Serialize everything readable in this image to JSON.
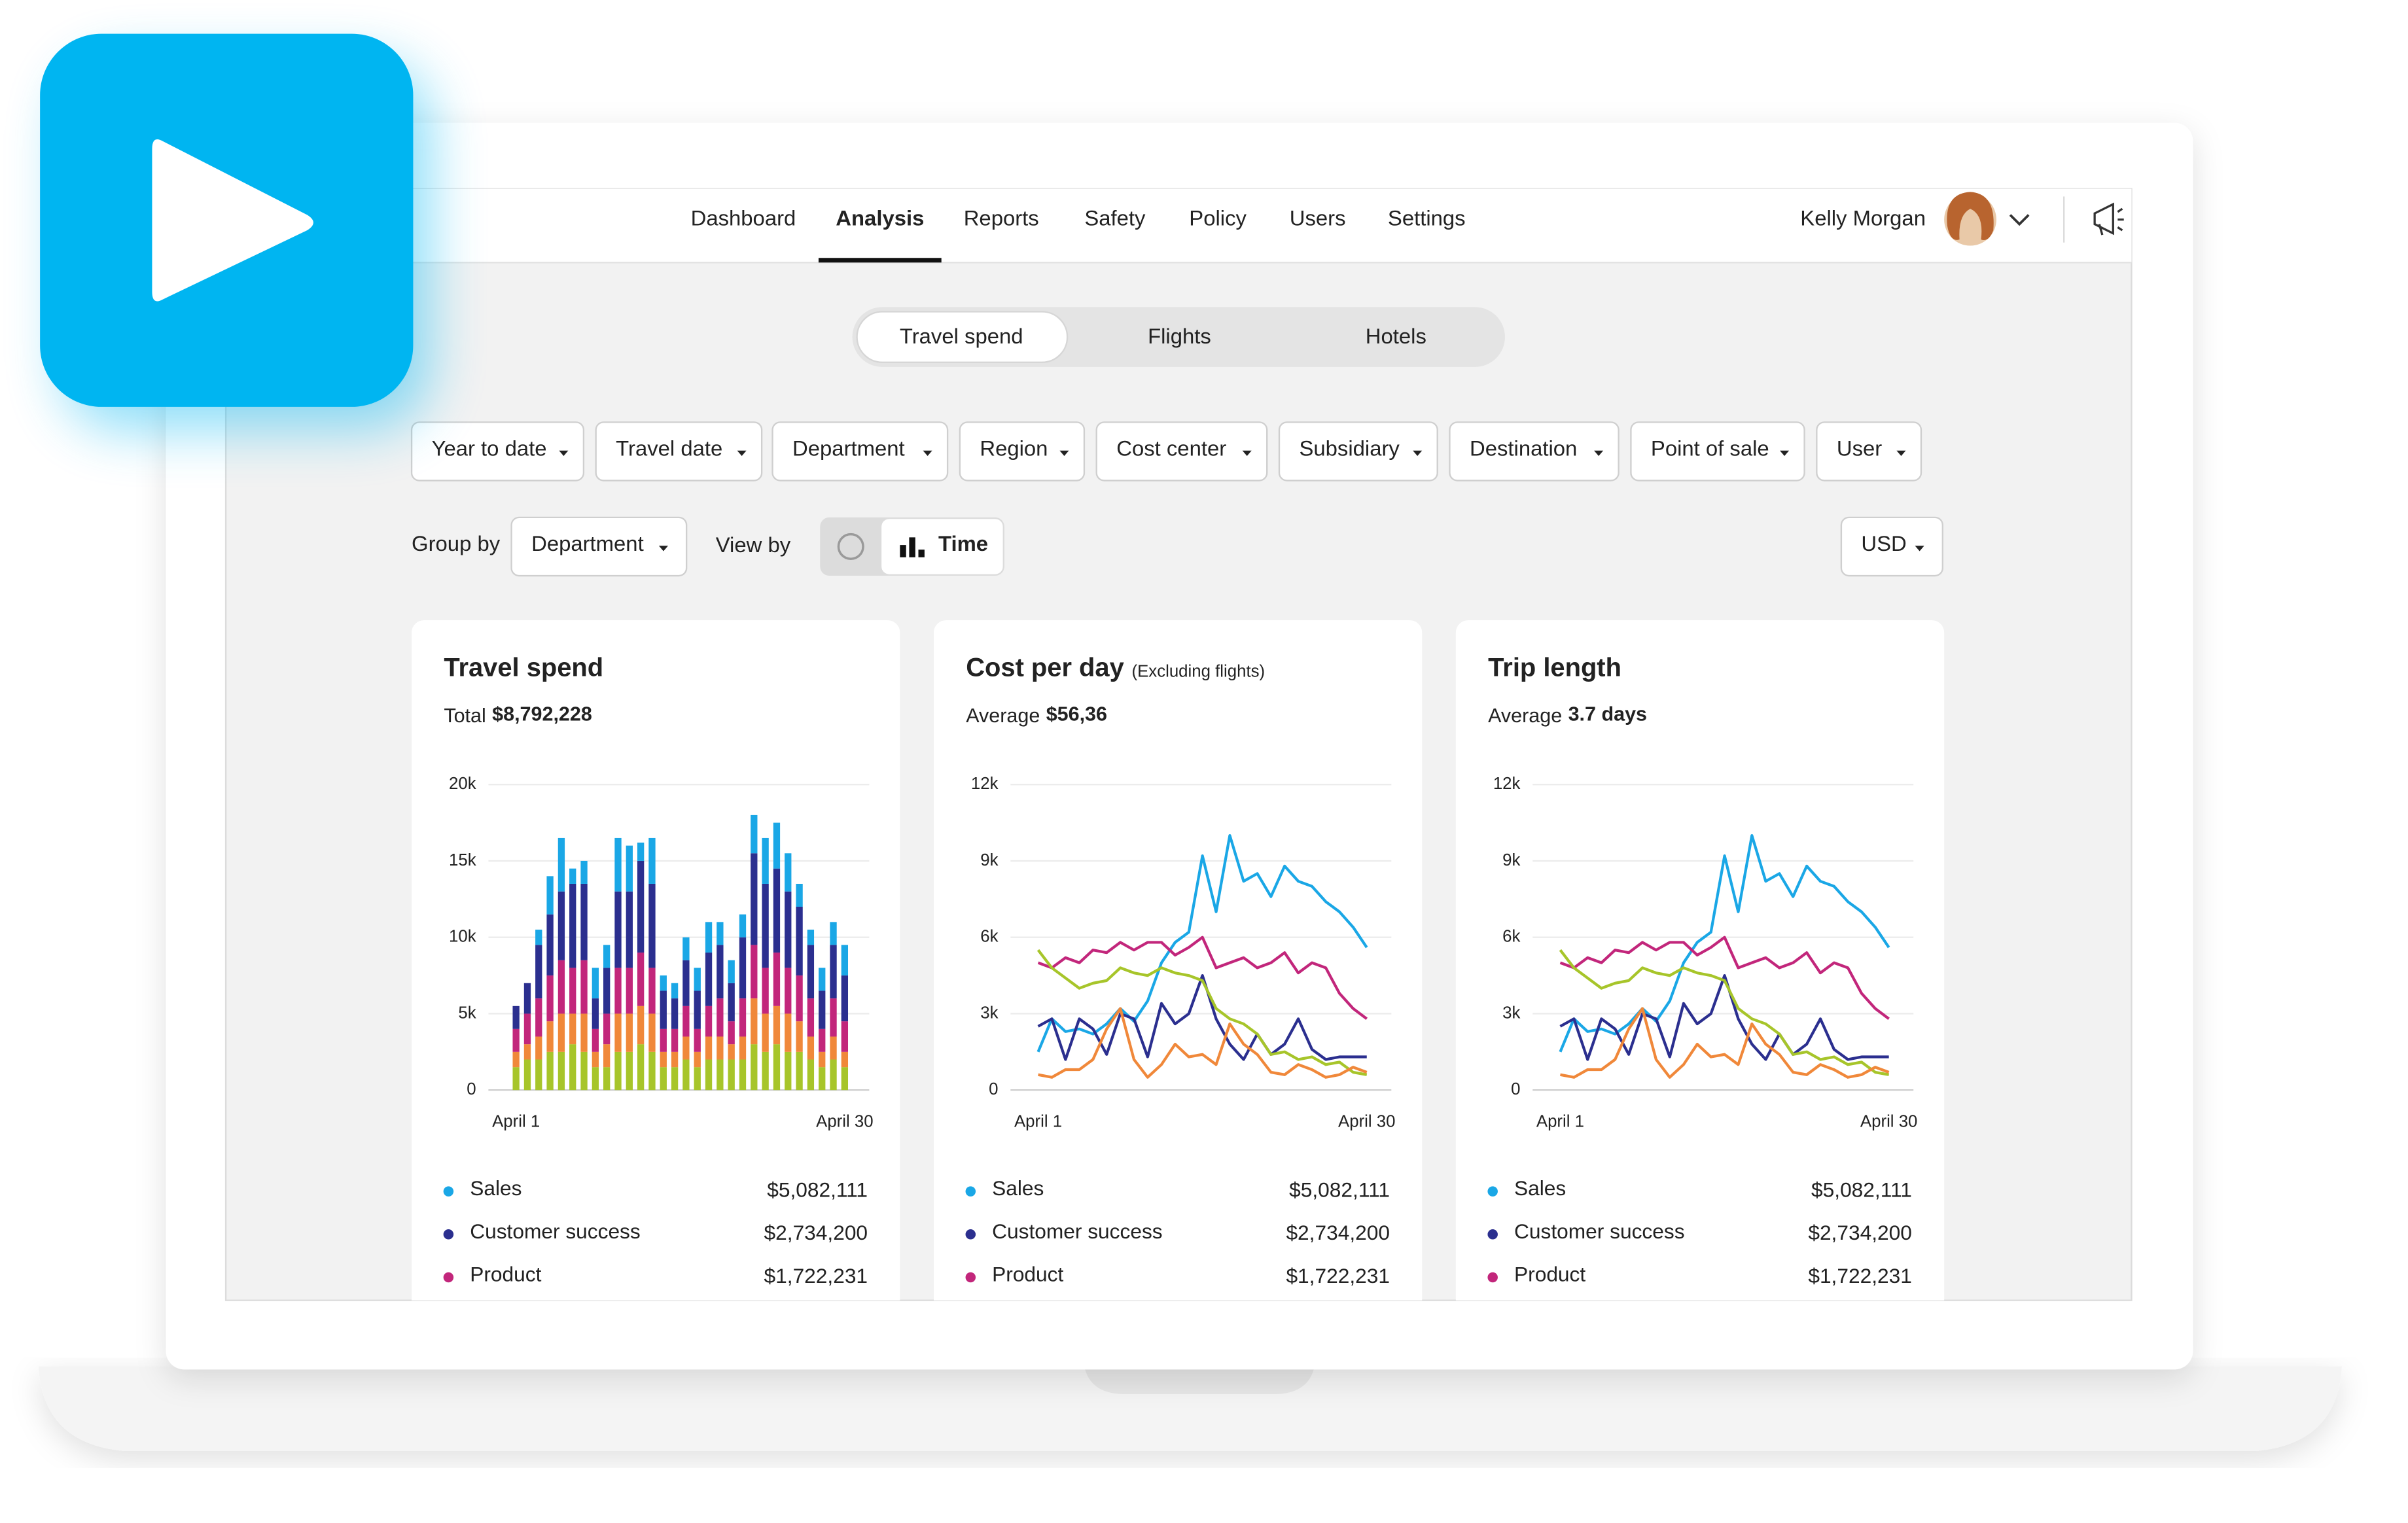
{
  "nav": {
    "items": [
      "Dashboard",
      "Analysis",
      "Reports",
      "Safety",
      "Policy",
      "Users",
      "Settings"
    ],
    "active": 1,
    "user_name": "Kelly Morgan"
  },
  "tabs": {
    "items": [
      "Travel spend",
      "Flights",
      "Hotels"
    ],
    "active": 0
  },
  "filters": [
    "Year to date",
    "Travel date",
    "Department",
    "Region",
    "Cost center",
    "Subsidiary",
    "Destination",
    "Point of sale",
    "User"
  ],
  "controls": {
    "group_by_label": "Group by",
    "group_by_value": "Department",
    "view_by_label": "View by",
    "view_by_value": "Time",
    "currency": "USD"
  },
  "cards": [
    {
      "summary_label": "Total",
      "summary_value": "$8,792,228",
      "legend_amounts": [
        "$5,082,111",
        "$2,734,200",
        "$1,722,231"
      ]
    },
    {
      "title_note": "(Excluding flights)",
      "summary_label": "Average",
      "summary_value": "$56,36",
      "legend_amounts": [
        "$5,082,111",
        "$2,734,200",
        "$1,722,231"
      ]
    },
    {
      "summary_label": "Average",
      "summary_value": "3.7 days",
      "legend_amounts": [
        "$5,082,111",
        "$2,734,200",
        "$1,722,231"
      ]
    }
  ],
  "chart_data": [
    {
      "type": "bar",
      "stacked": true,
      "title": "Travel spend",
      "grid": true,
      "categories": [
        "April 1",
        null,
        null,
        null,
        null,
        null,
        null,
        null,
        null,
        null,
        null,
        null,
        null,
        null,
        null,
        null,
        null,
        null,
        null,
        null,
        null,
        null,
        null,
        null,
        null,
        null,
        null,
        null,
        null,
        "April 30"
      ],
      "ylim": [
        0,
        20000
      ],
      "yticks": [
        0,
        {
          "value": 5000,
          "label": "5k"
        },
        {
          "value": 10000,
          "label": "10k"
        },
        {
          "value": 15000,
          "label": "15k"
        },
        {
          "value": 20000,
          "label": "20k"
        }
      ],
      "series": [
        {
          "name": "Sales",
          "color": "#1aa7e6",
          "values": [
            0,
            0,
            1000,
            2500,
            3500,
            1000,
            1500,
            2000,
            1500,
            3500,
            3000,
            1200,
            3000,
            1000,
            1000,
            1500,
            1500,
            2000,
            1500,
            1500,
            1500,
            2500,
            3000,
            3000,
            2500,
            1500,
            1000,
            1500,
            1500,
            2000
          ]
        },
        {
          "name": "Customer success",
          "color": "#2b2f8f",
          "values": [
            1500,
            2000,
            3500,
            4000,
            4500,
            5500,
            5000,
            2000,
            3000,
            5000,
            5000,
            6000,
            5500,
            2500,
            2000,
            3000,
            2500,
            3500,
            3500,
            2500,
            4000,
            6000,
            5500,
            5500,
            5000,
            4500,
            3500,
            2500,
            3500,
            3000
          ]
        },
        {
          "name": "Product",
          "color": "#c2267b",
          "values": [
            1500,
            2000,
            2500,
            3000,
            3500,
            3000,
            3500,
            1500,
            2000,
            3000,
            3000,
            3500,
            3000,
            1500,
            1500,
            2000,
            1500,
            2000,
            2500,
            1500,
            2500,
            3500,
            3000,
            3500,
            3000,
            3000,
            2500,
            1500,
            2500,
            2000
          ]
        },
        {
          "color": "#a7c52a",
          "values": [
            1500,
            2000,
            2000,
            2500,
            2500,
            3000,
            2500,
            1500,
            1500,
            2500,
            2500,
            3000,
            2500,
            1500,
            1500,
            2000,
            1500,
            2000,
            2000,
            2000,
            2000,
            3000,
            2500,
            3000,
            2500,
            2500,
            2000,
            1500,
            2000,
            1500
          ]
        },
        {
          "color": "#f0883a",
          "values": [
            1000,
            1000,
            1500,
            2000,
            2500,
            2000,
            2500,
            1000,
            1500,
            2500,
            2500,
            2500,
            2500,
            1000,
            1000,
            1500,
            1000,
            1500,
            1500,
            1000,
            1500,
            3000,
            2500,
            2500,
            2500,
            2000,
            1500,
            1000,
            1500,
            1000
          ]
        }
      ]
    },
    {
      "type": "line",
      "title": "Cost per day",
      "grid": true,
      "categories": [
        "April 1",
        null,
        null,
        null,
        null,
        null,
        null,
        null,
        null,
        null,
        null,
        null,
        null,
        null,
        null,
        null,
        null,
        null,
        null,
        null,
        null,
        null,
        null,
        null,
        "April 30"
      ],
      "ylim": [
        0,
        12000
      ],
      "yticks": [
        0,
        {
          "value": 3000,
          "label": "3k"
        },
        {
          "value": 6000,
          "label": "6k"
        },
        {
          "value": 9000,
          "label": "9k"
        },
        {
          "value": 12000,
          "label": "12k"
        }
      ],
      "series": [
        {
          "name": "Sales",
          "color": "#1aa7e6",
          "values": [
            1500,
            2800,
            2300,
            2400,
            2200,
            2600,
            3200,
            2700,
            3500,
            5000,
            5800,
            6200,
            9200,
            7000,
            10000,
            8200,
            8500,
            7600,
            8800,
            8200,
            8000,
            7400,
            7000,
            6400,
            5600
          ]
        },
        {
          "name": "Customer success",
          "color": "#2b2f8f",
          "values": [
            2500,
            2800,
            1200,
            2800,
            2400,
            1400,
            3000,
            2800,
            1300,
            3400,
            2600,
            3000,
            4500,
            2800,
            1800,
            1200,
            2200,
            1400,
            1800,
            2800,
            1600,
            1200,
            1300,
            1300,
            1300
          ]
        },
        {
          "name": "Product",
          "color": "#c2267b",
          "values": [
            5000,
            4800,
            5200,
            5000,
            5500,
            5400,
            5800,
            5500,
            5800,
            5800,
            5300,
            5600,
            6000,
            4800,
            5000,
            5200,
            4800,
            5000,
            5400,
            4600,
            5000,
            4800,
            3800,
            3200,
            2800
          ]
        },
        {
          "color": "#a7c52a",
          "values": [
            5500,
            4800,
            4400,
            4000,
            4200,
            4300,
            4800,
            4600,
            4500,
            4800,
            4600,
            4500,
            4300,
            3200,
            2800,
            2600,
            2200,
            1400,
            1500,
            1200,
            1300,
            1000,
            1100,
            700,
            600
          ]
        },
        {
          "color": "#f0883a",
          "values": [
            600,
            500,
            800,
            800,
            1200,
            2400,
            3200,
            1200,
            500,
            1000,
            1800,
            1300,
            1400,
            1000,
            2600,
            1800,
            1400,
            700,
            600,
            1000,
            800,
            500,
            600,
            900,
            700
          ]
        }
      ]
    },
    {
      "type": "line",
      "title": "Trip length",
      "grid": true,
      "categories": [
        "April 1",
        null,
        null,
        null,
        null,
        null,
        null,
        null,
        null,
        null,
        null,
        null,
        null,
        null,
        null,
        null,
        null,
        null,
        null,
        null,
        null,
        null,
        null,
        null,
        "April 30"
      ],
      "ylim": [
        0,
        12000
      ],
      "yticks": [
        0,
        {
          "value": 3000,
          "label": "3k"
        },
        {
          "value": 6000,
          "label": "6k"
        },
        {
          "value": 9000,
          "label": "9k"
        },
        {
          "value": 12000,
          "label": "12k"
        }
      ],
      "series": [
        {
          "name": "Sales",
          "color": "#1aa7e6",
          "values": [
            1500,
            2800,
            2300,
            2400,
            2200,
            2600,
            3200,
            2700,
            3500,
            5000,
            5800,
            6200,
            9200,
            7000,
            10000,
            8200,
            8500,
            7600,
            8800,
            8200,
            8000,
            7400,
            7000,
            6400,
            5600
          ]
        },
        {
          "name": "Customer success",
          "color": "#2b2f8f",
          "values": [
            2500,
            2800,
            1200,
            2800,
            2400,
            1400,
            3000,
            2800,
            1300,
            3400,
            2600,
            3000,
            4500,
            2800,
            1800,
            1200,
            2200,
            1400,
            1800,
            2800,
            1600,
            1200,
            1300,
            1300,
            1300
          ]
        },
        {
          "name": "Product",
          "color": "#c2267b",
          "values": [
            5000,
            4800,
            5200,
            5000,
            5500,
            5400,
            5800,
            5500,
            5800,
            5800,
            5300,
            5600,
            6000,
            4800,
            5000,
            5200,
            4800,
            5000,
            5400,
            4600,
            5000,
            4800,
            3800,
            3200,
            2800
          ]
        },
        {
          "color": "#a7c52a",
          "values": [
            5500,
            4800,
            4400,
            4000,
            4200,
            4300,
            4800,
            4600,
            4500,
            4800,
            4600,
            4500,
            4300,
            3200,
            2800,
            2600,
            2200,
            1400,
            1500,
            1200,
            1300,
            1000,
            1100,
            700,
            600
          ]
        },
        {
          "color": "#f0883a",
          "values": [
            600,
            500,
            800,
            800,
            1200,
            2400,
            3200,
            1200,
            500,
            1000,
            1800,
            1300,
            1400,
            1000,
            2600,
            1800,
            1400,
            700,
            600,
            1000,
            800,
            500,
            600,
            900,
            700
          ]
        }
      ]
    }
  ]
}
